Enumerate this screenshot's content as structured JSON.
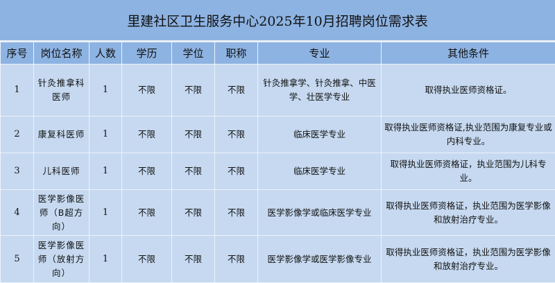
{
  "title": "里建社区卫生服务中心2025年10月招聘岗位需求表",
  "headers": [
    "序号",
    "岗位名称",
    "人数",
    "学历",
    "学位",
    "职称",
    "专业",
    "其他条件"
  ],
  "colors": {
    "title_bg": "#8db3e2",
    "header_bg": "#8db3e2",
    "row_bg": "#c6d9f0"
  },
  "rows": [
    {
      "no": "1",
      "position": "针灸推拿科医师",
      "count": "1",
      "education": "不限",
      "degree": "不限",
      "title": "不限",
      "major": "针灸推拿学、针灸推拿、中医学、壮医学专业",
      "other": "取得执业医师资格证。"
    },
    {
      "no": "2",
      "position": "康复科医师",
      "count": "1",
      "education": "不限",
      "degree": "不限",
      "title": "不限",
      "major": "临床医学专业",
      "other": "取得执业医师资格证,执业范围为康复专业或内科专业。"
    },
    {
      "no": "3",
      "position": "儿科医师",
      "count": "1",
      "education": "不限",
      "degree": "不限",
      "title": "不限",
      "major": "临床医学专业",
      "other": "取得执业医师资格证，执业范围为儿科专业。"
    },
    {
      "no": "4",
      "position": "医学影像医师（B超方向）",
      "count": "1",
      "education": "不限",
      "degree": "不限",
      "title": "不限",
      "major": "医学影像学或临床医学专业",
      "other": "取得执业医师资格证，执业范围为医学影像和放射治疗专业。"
    },
    {
      "no": "5",
      "position": "医学影像医师（放射方向）",
      "count": "1",
      "education": "不限",
      "degree": "不限",
      "title": "不限",
      "major": "医学影像学或医学影像专业",
      "other": "取得执业医师资格证，执业范围为医学影像和放射治疗专业。"
    }
  ]
}
